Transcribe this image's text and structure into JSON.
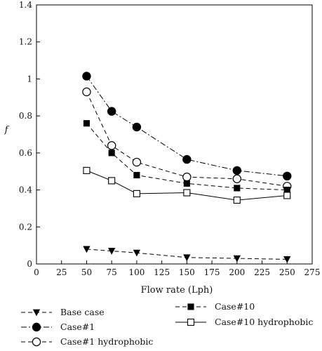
{
  "chart_data": {
    "type": "line",
    "xlabel": "Flow rate (Lph)",
    "ylabel": "f",
    "xlim": [
      0,
      275
    ],
    "ylim": [
      0,
      1.4
    ],
    "x_ticks": [
      "0",
      "25",
      "50",
      "75",
      "100",
      "125",
      "150",
      "175",
      "200",
      "225",
      "250",
      "275"
    ],
    "y_ticks": [
      "0",
      "0.2",
      "0.4",
      "0.6",
      "0.8",
      "1",
      "1.2",
      "1.4"
    ],
    "grid": false,
    "legend_position": "bottom",
    "x": [
      50,
      75,
      100,
      150,
      200,
      250
    ],
    "series": [
      {
        "name": "Base case",
        "values": [
          0.08,
          0.07,
          0.06,
          0.035,
          0.03,
          0.025
        ],
        "marker": "triangle-down",
        "filled": true,
        "line": "dashed"
      },
      {
        "name": "Case#1",
        "values": [
          1.015,
          0.825,
          0.74,
          0.565,
          0.505,
          0.475
        ],
        "marker": "circle",
        "filled": true,
        "line": "dashdot"
      },
      {
        "name": "Case#1 hydrophobic",
        "values": [
          0.93,
          0.64,
          0.55,
          0.47,
          0.46,
          0.42
        ],
        "marker": "circle",
        "filled": false,
        "line": "dashed"
      },
      {
        "name": "Case#10",
        "values": [
          0.76,
          0.6,
          0.48,
          0.435,
          0.41,
          0.4
        ],
        "marker": "square",
        "filled": true,
        "line": "dashed"
      },
      {
        "name": "Case#10 hydrophobic",
        "values": [
          0.505,
          0.45,
          0.38,
          0.385,
          0.345,
          0.37
        ],
        "marker": "square",
        "filled": false,
        "line": "solid"
      }
    ]
  }
}
